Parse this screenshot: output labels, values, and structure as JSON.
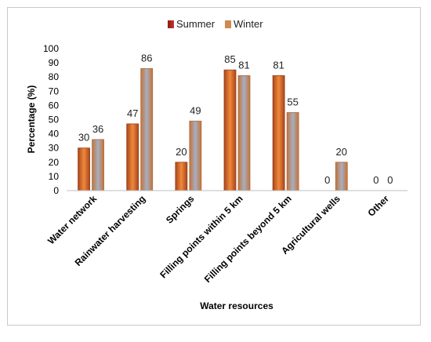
{
  "chart_data": {
    "type": "bar",
    "categories": [
      "Water network",
      "Rainwater harvesting",
      "Springs",
      "Filling points within 5 km",
      "Filling points beyond 5 km",
      "Agricultural wells",
      "Other"
    ],
    "series": [
      {
        "name": "Summer",
        "values": [
          30,
          47,
          20,
          85,
          81,
          0,
          0
        ],
        "color": "#e07a2e"
      },
      {
        "name": "Winter",
        "values": [
          36,
          86,
          49,
          81,
          55,
          20,
          0
        ],
        "color": "#9aa3b6"
      }
    ],
    "data_labels": [
      [
        "30",
        "47",
        "20",
        "85",
        "81",
        "0",
        "0"
      ],
      [
        "36",
        "86",
        "49",
        "81",
        "55",
        "20",
        "0"
      ]
    ],
    "yticks": [
      "0",
      "10",
      "20",
      "30",
      "40",
      "50",
      "60",
      "70",
      "80",
      "90",
      "100"
    ],
    "ylim": [
      0,
      100
    ],
    "xlabel": "Water resources",
    "ylabel": "Percentage (%)",
    "legend_position": "top",
    "grid": false
  }
}
